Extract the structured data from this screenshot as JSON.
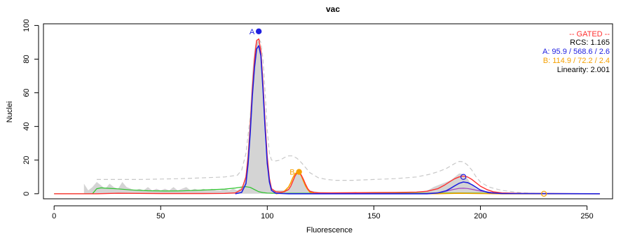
{
  "chart_data": {
    "type": "line",
    "title": "vac",
    "xlabel": "Fluorescence",
    "ylabel": "Nuclei",
    "xlim": [
      -5,
      262
    ],
    "ylim": [
      -3,
      101
    ],
    "x_ticks": [
      0,
      50,
      100,
      150,
      200,
      250
    ],
    "y_ticks": [
      0,
      20,
      40,
      60,
      80,
      100
    ],
    "grid": false,
    "colors": {
      "histogram": "#d4d4d4",
      "model": "#ff3030",
      "peak_a": "#2020e0",
      "peak_b": "#f5a000",
      "debris": "#2ac42a",
      "aggregate": "#a040c0",
      "envelope": "#c8c8c8",
      "text": "#000000"
    },
    "series": [
      {
        "role": "histogram",
        "x": [
          14,
          16,
          18,
          20,
          22,
          24,
          26,
          28,
          30,
          32,
          34,
          36,
          38,
          40,
          42,
          44,
          46,
          48,
          50,
          52,
          54,
          56,
          58,
          60,
          62,
          64,
          66,
          68,
          70,
          72,
          74,
          76,
          78,
          80,
          82,
          84,
          86,
          88,
          89,
          90,
          91,
          92,
          93,
          94,
          95,
          96,
          97,
          98,
          99,
          100,
          101,
          102,
          103,
          104,
          106,
          108,
          110,
          111,
          112,
          113,
          114,
          115,
          116,
          117,
          118,
          119,
          120,
          122,
          124,
          126,
          130,
          140,
          150,
          160,
          170,
          172,
          174,
          176,
          178,
          180,
          182,
          184,
          186,
          188,
          189,
          190,
          191,
          192,
          193,
          194,
          195,
          196,
          198,
          200,
          202,
          204,
          206,
          210,
          215,
          220,
          230,
          240,
          250,
          256
        ],
        "y": [
          6,
          2,
          4,
          7,
          5,
          3,
          6,
          4,
          3,
          7,
          4,
          3,
          2,
          3,
          2,
          4,
          2,
          3,
          2,
          3,
          2,
          4,
          2,
          3,
          4,
          2,
          3,
          2,
          3,
          2,
          3,
          2,
          2,
          3,
          2,
          3,
          2,
          4,
          6,
          12,
          28,
          50,
          72,
          86,
          92,
          90,
          78,
          55,
          30,
          14,
          6,
          3,
          2,
          2,
          2,
          2,
          3,
          5,
          8,
          11,
          13,
          12,
          10,
          7,
          5,
          3,
          2,
          1.5,
          1,
          1,
          0.8,
          0.8,
          0.7,
          0.8,
          0.8,
          1,
          1.5,
          2.5,
          4,
          5,
          6,
          7,
          8,
          10,
          11,
          12,
          12,
          11,
          10,
          9,
          7,
          5,
          3,
          2,
          1,
          0.5,
          0.3,
          0.2,
          0.1,
          0.1,
          0.3,
          0.1,
          0.1,
          0
        ]
      },
      {
        "role": "model",
        "x": [
          0,
          20,
          30,
          40,
          50,
          60,
          70,
          80,
          85,
          88,
          90,
          91,
          92,
          93,
          94,
          95,
          96,
          97,
          98,
          99,
          100,
          101,
          102,
          104,
          106,
          108,
          110,
          111,
          112,
          113,
          114,
          115,
          116,
          117,
          118,
          119,
          120,
          122,
          125,
          130,
          140,
          150,
          160,
          170,
          175,
          180,
          183,
          186,
          188,
          190,
          192,
          194,
          196,
          198,
          200,
          203,
          206,
          210,
          220,
          230,
          256
        ],
        "y": [
          0,
          0,
          0.3,
          0.2,
          0.1,
          0.1,
          0.1,
          0.2,
          0.5,
          2.5,
          10,
          22,
          40,
          62,
          80,
          91,
          92,
          85,
          66,
          42,
          22,
          9,
          3,
          1.2,
          1,
          1.2,
          2.5,
          4.5,
          7.5,
          10.5,
          12.5,
          12.8,
          11,
          8.5,
          5.5,
          3,
          1.5,
          0.7,
          0.5,
          0.5,
          0.6,
          0.7,
          0.8,
          1,
          1.5,
          3,
          5,
          7.5,
          9,
          10,
          10.5,
          10,
          8.5,
          6.5,
          4.5,
          2.5,
          1.2,
          0.5,
          0.2,
          0.1,
          0
        ]
      },
      {
        "role": "peak_a",
        "x": [
          85,
          88,
          90,
          91,
          92,
          93,
          94,
          95,
          96,
          97,
          98,
          99,
          100,
          101,
          102,
          104,
          110,
          150,
          175,
          180,
          184,
          186,
          188,
          190,
          192,
          194,
          196,
          198,
          200,
          204,
          210,
          256
        ],
        "y": [
          0,
          0.8,
          6,
          18,
          36,
          58,
          75,
          86,
          88,
          82,
          62,
          38,
          18,
          7,
          2,
          0.3,
          0,
          0,
          0,
          0.5,
          1.8,
          3.2,
          4.8,
          6.2,
          7,
          6.6,
          5.4,
          3.8,
          2.2,
          0.6,
          0.1,
          0
        ]
      },
      {
        "role": "peak_b",
        "x": [
          104,
          106,
          108,
          110,
          111,
          112,
          113,
          114,
          115,
          116,
          117,
          118,
          119,
          120,
          122,
          124,
          128,
          140,
          150,
          160,
          170,
          180,
          190,
          200,
          210,
          230,
          256
        ],
        "y": [
          0,
          0.3,
          1.5,
          4,
          6.5,
          9.5,
          11.8,
          12.8,
          12.5,
          10.5,
          7.5,
          4.5,
          2.5,
          1,
          0.3,
          0.1,
          0.05,
          0.05,
          0.05,
          0.05,
          0.05,
          0.05,
          0.3,
          0.1,
          0,
          0,
          0
        ]
      },
      {
        "role": "debris",
        "x": [
          0,
          18,
          20,
          22,
          26,
          30,
          36,
          44,
          52,
          60,
          70,
          80,
          85,
          88,
          90,
          92,
          94,
          96,
          98,
          100,
          104,
          110,
          120,
          140,
          160,
          180,
          190,
          200,
          210,
          256
        ],
        "y": [
          0,
          0,
          3,
          3.5,
          3.2,
          2.9,
          2.3,
          1.8,
          1.6,
          1.7,
          2.2,
          2.8,
          3.4,
          4,
          4.2,
          3.8,
          2.5,
          1.2,
          0.7,
          0.4,
          0.25,
          0.3,
          0.3,
          0.3,
          0.3,
          0.4,
          0.5,
          0.4,
          0.2,
          0
        ]
      },
      {
        "role": "aggregate",
        "x": [
          170,
          180,
          184,
          187,
          190,
          192,
          194,
          197,
          200,
          205,
          210,
          220,
          256
        ],
        "y": [
          0,
          0.5,
          1.5,
          2.5,
          3.2,
          3.3,
          3.1,
          2.4,
          1.6,
          0.8,
          0.3,
          0.1,
          0
        ]
      },
      {
        "role": "envelope",
        "x": [
          20,
          40,
          60,
          80,
          86,
          88,
          90,
          92,
          94,
          95,
          96,
          97,
          98,
          99,
          100,
          101,
          102,
          104,
          106,
          108,
          110,
          112,
          114,
          116,
          118,
          120,
          124,
          128,
          132,
          140,
          150,
          160,
          170,
          176,
          180,
          184,
          188,
          190,
          192,
          194,
          196,
          198,
          200,
          204,
          210,
          220,
          230
        ],
        "y": [
          8.5,
          8.5,
          9,
          10,
          11,
          14,
          24,
          46,
          74,
          86,
          92,
          90,
          80,
          60,
          38,
          24,
          20,
          19.5,
          20,
          21.5,
          22.5,
          22.5,
          21,
          18.5,
          15.5,
          12.5,
          9.5,
          8.5,
          8,
          8,
          8.5,
          9,
          10,
          11.5,
          13,
          15,
          18,
          19.2,
          19,
          17,
          14,
          10,
          7,
          4,
          2,
          0.5,
          0
        ]
      }
    ],
    "markers": [
      {
        "label": "A",
        "x": 96,
        "y": 96.5,
        "color": "#2020e0",
        "filled": true
      },
      {
        "label": "B",
        "x": 114.9,
        "y": 13,
        "color": "#f5a000",
        "filled": true
      },
      {
        "label": "",
        "x": 192,
        "y": 10,
        "color": "#2020e0",
        "filled": false
      },
      {
        "label": "",
        "x": 229.8,
        "y": 0,
        "color": "#f5a000",
        "filled": false
      }
    ],
    "annotations": [
      {
        "key": "gated",
        "text": "-- GATED --",
        "color": "#ff3030"
      },
      {
        "key": "rcs",
        "text": "RCS:  1.165",
        "color": "#000000"
      },
      {
        "key": "a",
        "text": "A:  95.9 / 568.6 / 2.6",
        "color": "#2020e0"
      },
      {
        "key": "b",
        "text": "B:  114.9 / 72.2 / 2.4",
        "color": "#f5a000"
      },
      {
        "key": "linearity",
        "text": "Linearity:  2.001",
        "color": "#000000"
      }
    ]
  }
}
